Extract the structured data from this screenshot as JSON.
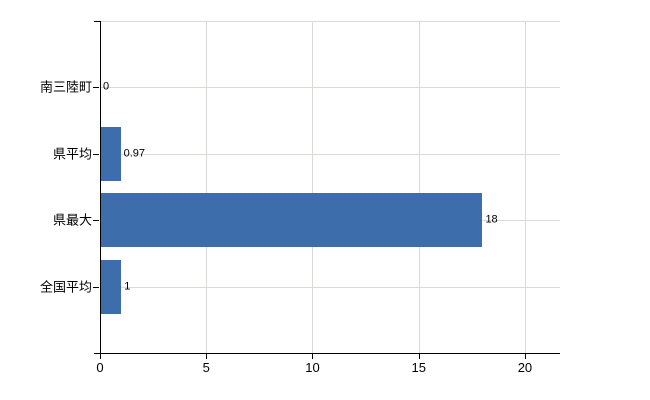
{
  "chart_data": {
    "type": "bar",
    "orientation": "horizontal",
    "title": "",
    "categories": [
      "南三陸町",
      "県平均",
      "県最大",
      "全国平均"
    ],
    "values": [
      0,
      0.97,
      18,
      1
    ],
    "value_labels": [
      "0",
      "0.97",
      "18",
      "1"
    ],
    "x_ticks": [
      0,
      5,
      10,
      15,
      20
    ],
    "x_tick_labels": [
      "0",
      "5",
      "10",
      "15",
      "20"
    ],
    "xlim": [
      0,
      21.65
    ],
    "grid": true,
    "legend": false,
    "bar_color": "#3d6dab",
    "gridline_color": "#d9dcd6",
    "axis_color": "#000000",
    "text_color": "#000000"
  }
}
